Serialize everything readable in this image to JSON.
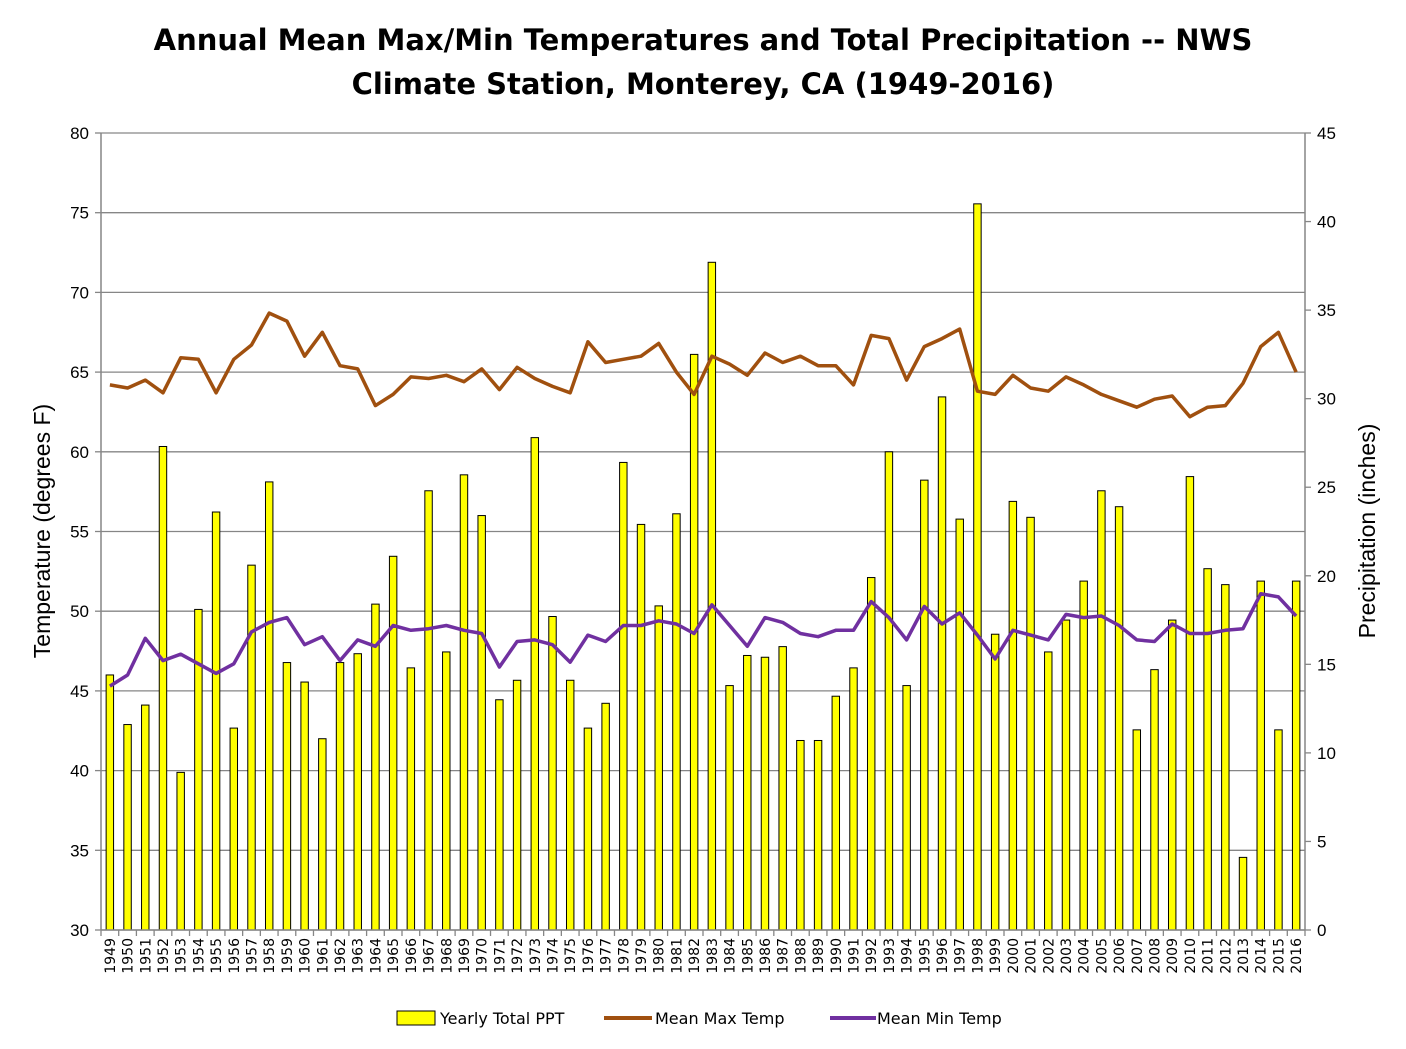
{
  "chart_data": {
    "type": "bar+line",
    "title_lines": [
      "Annual Mean Max/Min Temperatures and Total Precipitation -- NWS",
      "Climate Station, Monterey, CA (1949-2016)"
    ],
    "ylabel_left": "Temperature (degrees F)",
    "ylabel_right": "Precipitation (inches)",
    "ylim_left": [
      30,
      80
    ],
    "yticks_left": [
      30,
      35,
      40,
      45,
      50,
      55,
      60,
      65,
      70,
      75,
      80
    ],
    "ylim_right": [
      0,
      45
    ],
    "yticks_right": [
      0,
      5,
      10,
      15,
      20,
      25,
      30,
      35,
      40,
      45
    ],
    "grid": true,
    "legend_position": "bottom",
    "categories": [
      "1949",
      "1950",
      "1951",
      "1952",
      "1953",
      "1954",
      "1955",
      "1956",
      "1957",
      "1958",
      "1959",
      "1960",
      "1961",
      "1962",
      "1963",
      "1964",
      "1965",
      "1966",
      "1967",
      "1968",
      "1969",
      "1970",
      "1971",
      "1972",
      "1973",
      "1974",
      "1975",
      "1976",
      "1977",
      "1978",
      "1979",
      "1980",
      "1981",
      "1982",
      "1983",
      "1984",
      "1985",
      "1986",
      "1987",
      "1988",
      "1989",
      "1990",
      "1991",
      "1992",
      "1993",
      "1994",
      "1995",
      "1996",
      "1997",
      "1998",
      "1999",
      "2000",
      "2001",
      "2002",
      "2003",
      "2004",
      "2005",
      "2006",
      "2007",
      "2008",
      "2009",
      "2010",
      "2011",
      "2012",
      "2013",
      "2014",
      "2015",
      "2016"
    ],
    "series": [
      {
        "name": "Yearly Total PPT",
        "type": "bar",
        "axis": "right",
        "color": "#FFFF00",
        "values": [
          14.4,
          11.6,
          12.7,
          27.3,
          8.9,
          18.1,
          23.6,
          11.4,
          20.6,
          25.3,
          15.1,
          14.0,
          10.8,
          15.1,
          15.6,
          18.4,
          21.1,
          14.8,
          24.8,
          15.7,
          25.7,
          23.4,
          13.0,
          14.1,
          27.8,
          17.7,
          14.1,
          11.4,
          12.8,
          26.4,
          22.9,
          18.3,
          23.5,
          32.5,
          37.7,
          13.8,
          15.5,
          15.4,
          16.0,
          10.7,
          10.7,
          13.2,
          14.8,
          19.9,
          27.0,
          13.8,
          25.4,
          30.1,
          23.2,
          41.0,
          16.7,
          24.2,
          23.3,
          15.7,
          17.5,
          19.7,
          24.8,
          23.9,
          11.3,
          14.7,
          17.5,
          25.6,
          20.4,
          19.5,
          4.1,
          19.7,
          11.3,
          19.7
        ]
      },
      {
        "name": "Mean Max Temp",
        "type": "line",
        "axis": "left",
        "color": "#A0500F",
        "values": [
          64.2,
          64.0,
          64.5,
          63.7,
          65.9,
          65.8,
          63.7,
          65.8,
          66.7,
          68.7,
          68.2,
          66.0,
          67.5,
          65.4,
          65.2,
          62.9,
          63.6,
          64.7,
          64.6,
          64.8,
          64.4,
          65.2,
          63.9,
          65.3,
          64.6,
          64.1,
          63.7,
          66.9,
          65.6,
          65.8,
          66.0,
          66.8,
          65.0,
          63.6,
          66.0,
          65.5,
          64.8,
          66.2,
          65.6,
          66.0,
          65.4,
          65.4,
          64.2,
          67.3,
          67.1,
          64.5,
          66.6,
          67.1,
          67.7,
          63.8,
          63.6,
          64.8,
          64.0,
          63.8,
          64.7,
          64.2,
          63.6,
          63.2,
          62.8,
          63.3,
          63.5,
          62.2,
          62.8,
          62.9,
          64.3,
          66.6,
          67.5,
          65.0
        ]
      },
      {
        "name": "Mean Min Temp",
        "type": "line",
        "axis": "left",
        "color": "#7030A0",
        "values": [
          45.3,
          46.0,
          48.3,
          46.9,
          47.3,
          46.7,
          46.1,
          46.7,
          48.7,
          49.3,
          49.6,
          47.9,
          48.4,
          46.9,
          48.2,
          47.8,
          49.1,
          48.8,
          48.9,
          49.1,
          48.8,
          48.6,
          46.5,
          48.1,
          48.2,
          47.9,
          46.8,
          48.5,
          48.1,
          49.1,
          49.1,
          49.4,
          49.2,
          48.6,
          50.4,
          49.1,
          47.8,
          49.6,
          49.3,
          48.6,
          48.4,
          48.8,
          48.8,
          50.6,
          49.6,
          48.2,
          50.3,
          49.2,
          49.9,
          48.5,
          47.0,
          48.8,
          48.5,
          48.2,
          49.8,
          49.6,
          49.7,
          49.1,
          48.2,
          48.1,
          49.2,
          48.6,
          48.6,
          48.8,
          48.9,
          51.1,
          50.9,
          49.7
        ]
      }
    ]
  }
}
